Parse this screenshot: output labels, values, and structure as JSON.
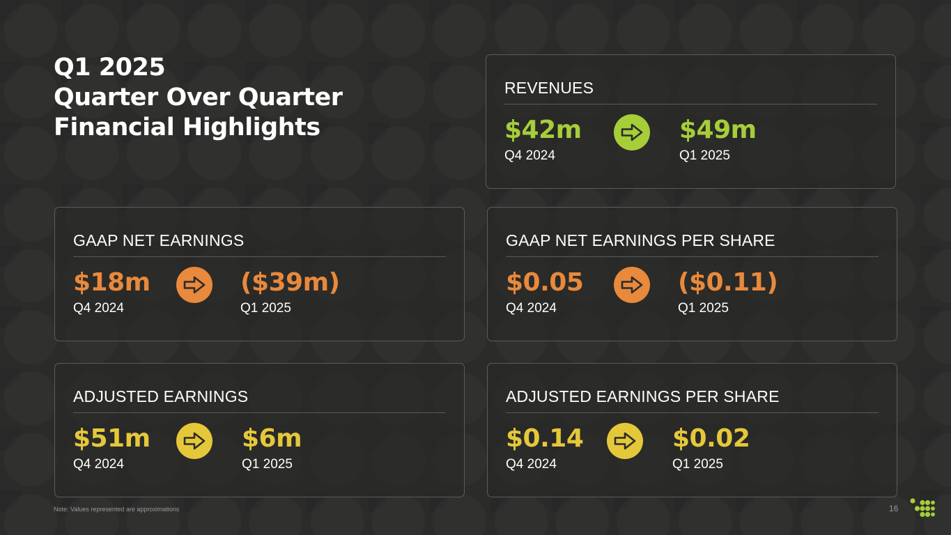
{
  "title": {
    "line1": "Q1 2025",
    "line2": "Quarter Over Quarter",
    "line3": "Financial Highlights"
  },
  "period_from": "Q4 2024",
  "period_to": "Q1 2025",
  "cards": {
    "revenues": {
      "label": "REVENUES",
      "from": "$42m",
      "to": "$49m",
      "color": "#a6ce39"
    },
    "gaap_net_earnings": {
      "label": "GAAP NET EARNINGS",
      "from": "$18m",
      "to": "($39m)",
      "color": "#e8893c"
    },
    "gaap_eps": {
      "label": "GAAP NET EARNINGS PER SHARE",
      "from": "$0.05",
      "to": "($0.11)",
      "color": "#e8893c"
    },
    "adjusted_earnings": {
      "label": "ADJUSTED EARNINGS",
      "from": "$51m",
      "to": "$6m",
      "color": "#e5c83a"
    },
    "adjusted_eps": {
      "label": "ADJUSTED EARNINGS PER SHARE",
      "from": "$0.14",
      "to": "$0.02",
      "color": "#e5c83a"
    }
  },
  "icons": {
    "change_arrow": "arrow-right-icon",
    "brand": "dot-grid-logo"
  },
  "footer": {
    "note": "Note: Values represented are approximations",
    "page_number": "16"
  }
}
